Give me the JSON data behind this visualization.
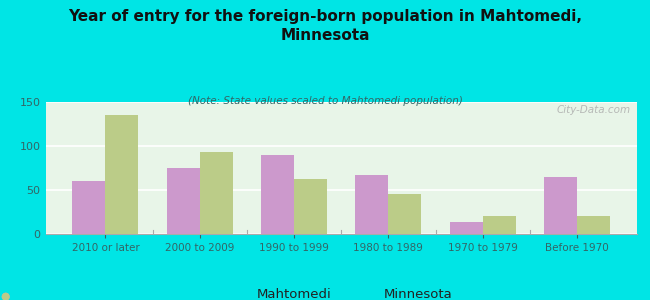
{
  "title": "Year of entry for the foreign-born population in Mahtomedi,\nMinnesota",
  "subtitle": "(Note: State values scaled to Mahtomedi population)",
  "categories": [
    "2010 or later",
    "2000 to 2009",
    "1990 to 1999",
    "1980 to 1989",
    "1970 to 1979",
    "Before 1970"
  ],
  "mahtomedi": [
    60,
    75,
    90,
    67,
    14,
    65
  ],
  "minnesota": [
    135,
    93,
    62,
    46,
    20,
    21
  ],
  "mahtomedi_color": "#cc99cc",
  "minnesota_color": "#bbcc88",
  "background_color": "#00e5e5",
  "plot_bg_color": "#e8f5e8",
  "ylim": [
    0,
    150
  ],
  "yticks": [
    0,
    50,
    100,
    150
  ],
  "bar_width": 0.35,
  "legend_mahtomedi": "Mahtomedi",
  "legend_minnesota": "Minnesota",
  "watermark": "City-Data.com"
}
